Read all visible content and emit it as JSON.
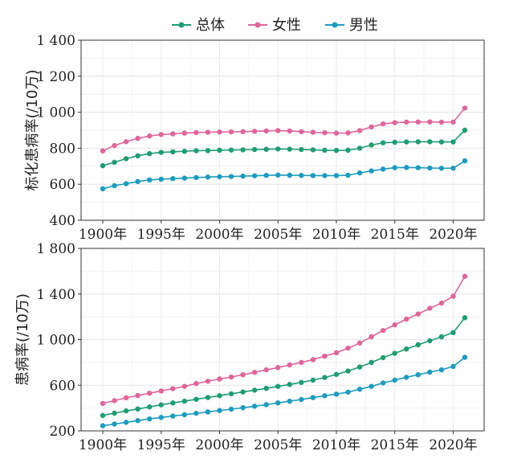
{
  "legend": {
    "items": [
      {
        "label": "总体",
        "color": "#1e9e6e"
      },
      {
        "label": "女性",
        "color": "#e0659a"
      },
      {
        "label": "男性",
        "color": "#1c9cc0"
      }
    ]
  },
  "x_tick_labels": [
    "1900年",
    "1995年",
    "2000年",
    "2005年",
    "2010年",
    "2015年",
    "2020年"
  ],
  "chart_data": [
    {
      "type": "line",
      "ylabel": "标化患病率(/10万)",
      "ylim": [
        400,
        1400
      ],
      "yticks": [
        400,
        600,
        800,
        1000,
        1200,
        1400
      ],
      "ytick_labels": [
        "400",
        "600",
        "800",
        "1 000",
        "1 200",
        "1 400"
      ],
      "grid": true,
      "series": [
        {
          "name": "总体",
          "color": "#1e9e6e",
          "values": [
            703,
            722,
            742,
            758,
            770,
            777,
            780,
            783,
            786,
            787,
            789,
            790,
            791,
            793,
            794,
            796,
            795,
            793,
            791,
            789,
            788,
            789,
            800,
            818,
            830,
            833,
            835,
            836,
            836,
            835,
            835,
            900
          ]
        },
        {
          "name": "女性",
          "color": "#e0659a",
          "values": [
            785,
            815,
            836,
            855,
            868,
            876,
            880,
            884,
            887,
            889,
            890,
            891,
            892,
            894,
            896,
            898,
            896,
            892,
            889,
            886,
            884,
            885,
            898,
            918,
            935,
            942,
            945,
            946,
            946,
            945,
            945,
            1023
          ]
        },
        {
          "name": "男性",
          "color": "#1c9cc0",
          "values": [
            575,
            592,
            603,
            615,
            624,
            628,
            631,
            634,
            637,
            640,
            642,
            643,
            645,
            647,
            649,
            651,
            650,
            649,
            648,
            648,
            648,
            650,
            663,
            674,
            684,
            692,
            693,
            692,
            690,
            689,
            689,
            730
          ]
        }
      ]
    },
    {
      "type": "line",
      "ylabel": "患病率(/10万)",
      "ylim": [
        200,
        1800
      ],
      "yticks": [
        200,
        600,
        1000,
        1400,
        1800
      ],
      "ytick_labels": [
        "200",
        "600",
        "1 000",
        "1 400",
        "1 800"
      ],
      "grid": true,
      "series": [
        {
          "name": "总体",
          "color": "#1e9e6e",
          "values": [
            335,
            355,
            375,
            392,
            410,
            428,
            445,
            460,
            477,
            493,
            509,
            525,
            541,
            557,
            573,
            590,
            607,
            625,
            645,
            668,
            695,
            725,
            760,
            800,
            842,
            880,
            918,
            955,
            990,
            1025,
            1062,
            1192
          ]
        },
        {
          "name": "女性",
          "color": "#e0659a",
          "values": [
            440,
            465,
            490,
            510,
            530,
            550,
            570,
            590,
            615,
            635,
            655,
            672,
            692,
            713,
            735,
            755,
            778,
            800,
            825,
            855,
            885,
            925,
            970,
            1025,
            1080,
            1130,
            1180,
            1225,
            1275,
            1320,
            1380,
            1555
          ]
        },
        {
          "name": "男性",
          "color": "#1c9cc0",
          "values": [
            245,
            260,
            275,
            290,
            305,
            318,
            330,
            342,
            354,
            366,
            378,
            390,
            403,
            416,
            430,
            445,
            460,
            475,
            492,
            508,
            522,
            540,
            565,
            590,
            620,
            645,
            670,
            692,
            715,
            735,
            765,
            845
          ]
        }
      ]
    }
  ]
}
